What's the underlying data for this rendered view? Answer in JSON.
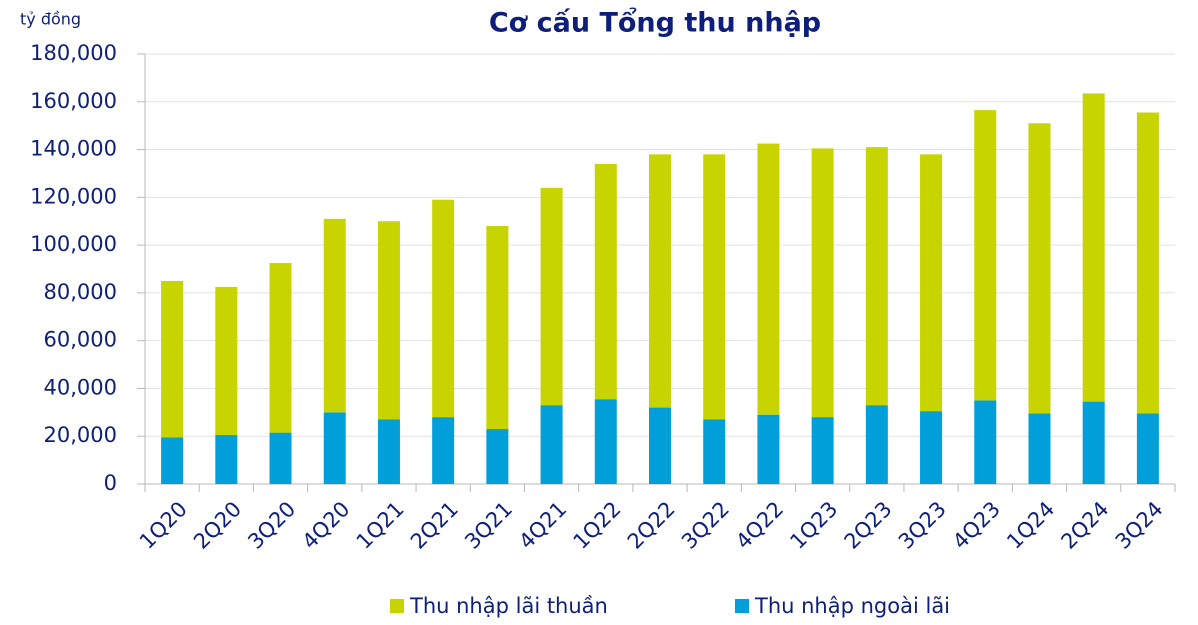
{
  "chart_data": {
    "type": "stacked_bar",
    "title": "Cơ cấu Tổng thu nhập",
    "y_axis_label": "tỷ đồng",
    "categories": [
      "1Q20",
      "2Q20",
      "3Q20",
      "4Q20",
      "1Q21",
      "2Q21",
      "3Q21",
      "4Q21",
      "1Q22",
      "2Q22",
      "3Q22",
      "4Q22",
      "1Q23",
      "2Q23",
      "3Q23",
      "4Q23",
      "1Q24",
      "2Q24",
      "3Q24"
    ],
    "series": [
      {
        "name": "Thu nhập lãi thuần",
        "color": "#c8d400",
        "values": [
          65500,
          62000,
          71000,
          81000,
          83000,
          91000,
          85000,
          91000,
          98500,
          106000,
          111000,
          113500,
          112500,
          108000,
          107500,
          121500,
          121500,
          129000,
          126000
        ]
      },
      {
        "name": "Thu nhập ngoài lãi",
        "color": "#009fda",
        "values": [
          19500,
          20500,
          21500,
          30000,
          27000,
          28000,
          23000,
          33000,
          35500,
          32000,
          27000,
          29000,
          28000,
          33000,
          30500,
          35000,
          29500,
          34500,
          29500
        ]
      }
    ],
    "stack_order": "last_series_at_bottom",
    "ylim": [
      0,
      180000
    ],
    "yticks": [
      0,
      {
        "value": 20000,
        "label": "20,000"
      },
      {
        "value": 40000,
        "label": "40,000"
      },
      {
        "value": 60000,
        "label": "60,000"
      },
      {
        "value": 80000,
        "label": "80,000"
      },
      {
        "value": 100000,
        "label": "100,000"
      },
      {
        "value": 120000,
        "label": "120,000"
      },
      {
        "value": 140000,
        "label": "140,000"
      },
      {
        "value": 160000,
        "label": "160,000"
      },
      {
        "value": 180000,
        "label": "180,000"
      }
    ],
    "grid": true,
    "legend": "bottom"
  }
}
